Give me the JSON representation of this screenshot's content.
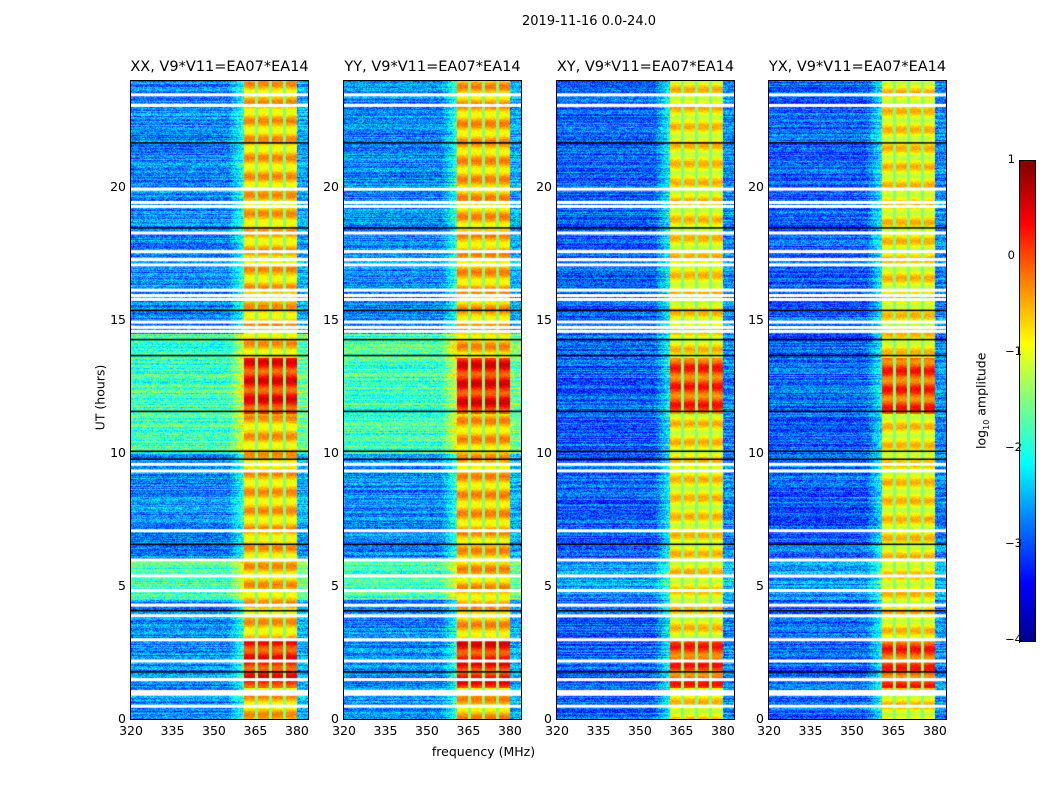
{
  "chart_data": {
    "type": "heatmap",
    "title": "2019-11-16 0.0-24.0",
    "xlabel": "frequency (MHz)",
    "ylabel": "UT (hours)",
    "xlim": [
      320,
      384
    ],
    "ylim": [
      0,
      24
    ],
    "xticks": [
      "320",
      "335",
      "350",
      "365",
      "380"
    ],
    "yticks": [
      "0",
      "5",
      "10",
      "15",
      "20"
    ],
    "colorbar": {
      "label_main": "log",
      "label_sub": "10",
      "label_rest": " amplitude",
      "range": [
        -4,
        1
      ],
      "ticks": [
        "1",
        "0",
        "−1",
        "−2",
        "−3",
        "−4"
      ],
      "colormap": "jet"
    },
    "panels": [
      {
        "title": "XX, V9*V11=EA07*EA14",
        "band_level": -0.6,
        "quiet_level": -2.7,
        "green_period_level": -1.8
      },
      {
        "title": "YY, V9*V11=EA07*EA14",
        "band_level": -0.55,
        "quiet_level": -2.7,
        "green_period_level": -1.8
      },
      {
        "title": "XY, V9*V11=EA07*EA14",
        "band_level": -0.8,
        "quiet_level": -2.9,
        "green_period_level": -2.6
      },
      {
        "title": "YX, V9*V11=EA07*EA14",
        "band_level": -0.8,
        "quiet_level": -2.9,
        "green_period_level": -2.6
      }
    ],
    "strong_band_MHz": [
      360.5,
      380
    ],
    "subband_gaps_MHz": [
      365.3,
      370.3,
      375.3
    ],
    "bright_periods_h": [
      [
        11.5,
        13.6
      ],
      [
        1.2,
        3.0
      ]
    ],
    "flagged_rows_h": [
      23.5,
      23.1,
      19.95,
      19.45,
      19.3,
      18.3,
      17.6,
      17.3,
      17.1,
      16.15,
      15.95,
      15.8,
      14.95,
      14.75,
      14.6,
      9.6,
      9.35,
      7.1,
      6.0,
      5.4,
      4.85,
      4.3,
      3.9,
      3.0,
      2.2,
      1.5,
      1.05,
      0.95,
      0.5
    ],
    "dark_rows_h": [
      21.7,
      18.5,
      15.4,
      14.3,
      13.7,
      11.6,
      10.1,
      9.8,
      6.6,
      4.1,
      1.8
    ]
  }
}
